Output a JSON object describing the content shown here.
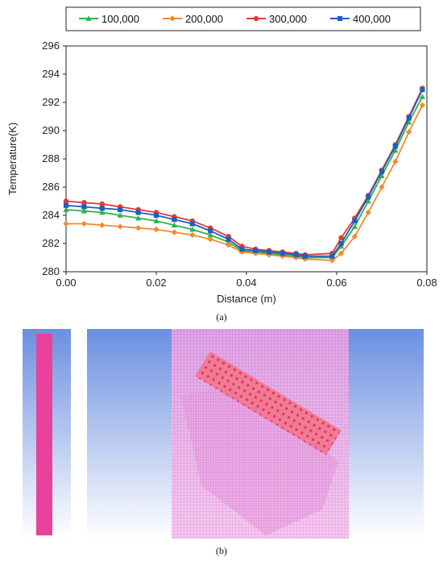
{
  "chart_data": {
    "type": "line",
    "xlabel": "Distance (m)",
    "ylabel": "Temperature(K)",
    "xlim": [
      0,
      0.08
    ],
    "ylim": [
      280,
      296
    ],
    "xticks": [
      "0.00",
      "0.02",
      "0.04",
      "0.06",
      "0.08"
    ],
    "yticks": [
      "280",
      "282",
      "284",
      "286",
      "288",
      "290",
      "292",
      "294",
      "296"
    ],
    "grid": false,
    "legend": "top-center",
    "series": [
      {
        "name": "100,000",
        "color": "#2db34a",
        "marker": "triangle",
        "x": [
          0,
          0.004,
          0.008,
          0.012,
          0.016,
          0.02,
          0.024,
          0.028,
          0.032,
          0.036,
          0.039,
          0.042,
          0.045,
          0.048,
          0.051,
          0.053,
          0.059,
          0.061,
          0.064,
          0.067,
          0.07,
          0.073,
          0.076,
          0.079
        ],
        "y": [
          284.4,
          284.3,
          284.2,
          284.0,
          283.8,
          283.6,
          283.3,
          283.0,
          282.6,
          282.1,
          281.5,
          281.4,
          281.3,
          281.2,
          281.1,
          281.0,
          281.0,
          281.8,
          283.2,
          285.0,
          286.8,
          288.6,
          290.6,
          292.4
        ]
      },
      {
        "name": "200,000",
        "color": "#f08a2c",
        "marker": "diamond",
        "x": [
          0,
          0.004,
          0.008,
          0.012,
          0.016,
          0.02,
          0.024,
          0.028,
          0.032,
          0.036,
          0.039,
          0.042,
          0.045,
          0.048,
          0.051,
          0.053,
          0.059,
          0.061,
          0.064,
          0.067,
          0.07,
          0.073,
          0.076,
          0.079
        ],
        "y": [
          283.4,
          283.4,
          283.3,
          283.2,
          283.1,
          283.0,
          282.8,
          282.6,
          282.3,
          281.9,
          281.4,
          281.3,
          281.2,
          281.1,
          281.0,
          280.9,
          280.8,
          281.3,
          282.5,
          284.2,
          286.0,
          287.8,
          289.9,
          291.8
        ]
      },
      {
        "name": "300,000",
        "color": "#e03c31",
        "marker": "circle",
        "x": [
          0,
          0.004,
          0.008,
          0.012,
          0.016,
          0.02,
          0.024,
          0.028,
          0.032,
          0.036,
          0.039,
          0.042,
          0.045,
          0.048,
          0.051,
          0.053,
          0.059,
          0.061,
          0.064,
          0.067,
          0.07,
          0.073,
          0.076,
          0.079
        ],
        "y": [
          285.0,
          284.9,
          284.8,
          284.6,
          284.4,
          284.2,
          283.9,
          283.6,
          283.1,
          282.5,
          281.8,
          281.6,
          281.5,
          281.4,
          281.3,
          281.2,
          281.3,
          282.4,
          283.8,
          285.4,
          287.2,
          289.0,
          291.0,
          293.0
        ]
      },
      {
        "name": "400,000",
        "color": "#1f5fbf",
        "marker": "square",
        "x": [
          0,
          0.004,
          0.008,
          0.012,
          0.016,
          0.02,
          0.024,
          0.028,
          0.032,
          0.036,
          0.039,
          0.042,
          0.045,
          0.048,
          0.051,
          0.053,
          0.059,
          0.061,
          0.064,
          0.067,
          0.07,
          0.073,
          0.076,
          0.079
        ],
        "y": [
          284.7,
          284.6,
          284.5,
          284.4,
          284.2,
          284.0,
          283.7,
          283.4,
          282.9,
          282.3,
          281.6,
          281.5,
          281.4,
          281.3,
          281.2,
          281.1,
          281.1,
          282.0,
          283.6,
          285.3,
          287.1,
          288.9,
          290.9,
          292.9
        ]
      }
    ]
  },
  "captions": {
    "a": "(a)",
    "b": "(b)"
  },
  "mesh": {
    "background_gradient": [
      "#6b8fe0",
      "#ffffff"
    ],
    "mesh_color": "#e05ad0",
    "bar_color": "#e8429c",
    "rotated_bar_color": "#f07090"
  }
}
